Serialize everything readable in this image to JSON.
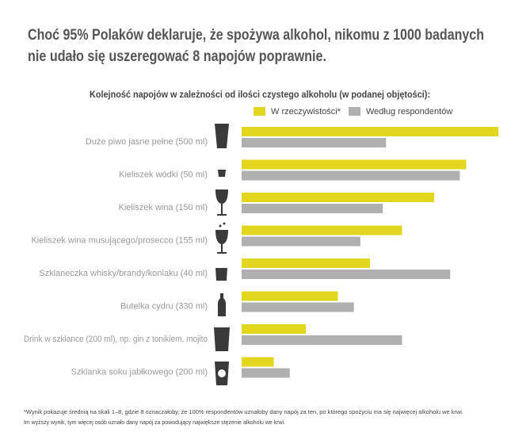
{
  "chart_data": {
    "type": "bar",
    "title": [
      "Choć 95% Polaków deklaruje, że spożywa alkohol, nikomu z 1000 badanych",
      "nie udało się uszeregować 8 napojów poprawnie."
    ],
    "subtitle": "Kolejność napojów w zależności od ilości czystego alkoholu (w podanej objętości):",
    "categories": [
      "Duże piwo jasne pełne (500 ml)",
      "Kieliszek wódki (50 ml)",
      "Kieliszek wina (150 ml)",
      "Kieliszek wina musującego/prosecco (155 ml)",
      "Szklaneczka whisky/brandy/koniaku (40 ml)",
      "Butelka cydru (330 ml)",
      "Drink w szklance (200 ml), np. gin z tonikiem, mojito",
      "Szklanka soku jabłkowego (200 ml)"
    ],
    "series": [
      {
        "name": "W rzeczywistości*",
        "color": "#e2d61e",
        "values": [
          8,
          7,
          6,
          5,
          4,
          3,
          2,
          1
        ]
      },
      {
        "name": "Według respondentów",
        "color": "#b0b0b0",
        "values": [
          4.5,
          6.8,
          4.4,
          3.7,
          6.5,
          3.5,
          5.0,
          1.5
        ]
      }
    ],
    "footnote": [
      "*Wynik pokazuje średnią na skali 1–8, gdzie 8 oznaczałoby, że 100% respondentów uznałoby dany napój za ten, po którego spożyciu ma się najwięcej alkoholu we krwi.",
      "Im wyższy wynik, tym więcej osób uznało dany napój za powodujący największe stężenie alkoholu we krwi."
    ]
  }
}
